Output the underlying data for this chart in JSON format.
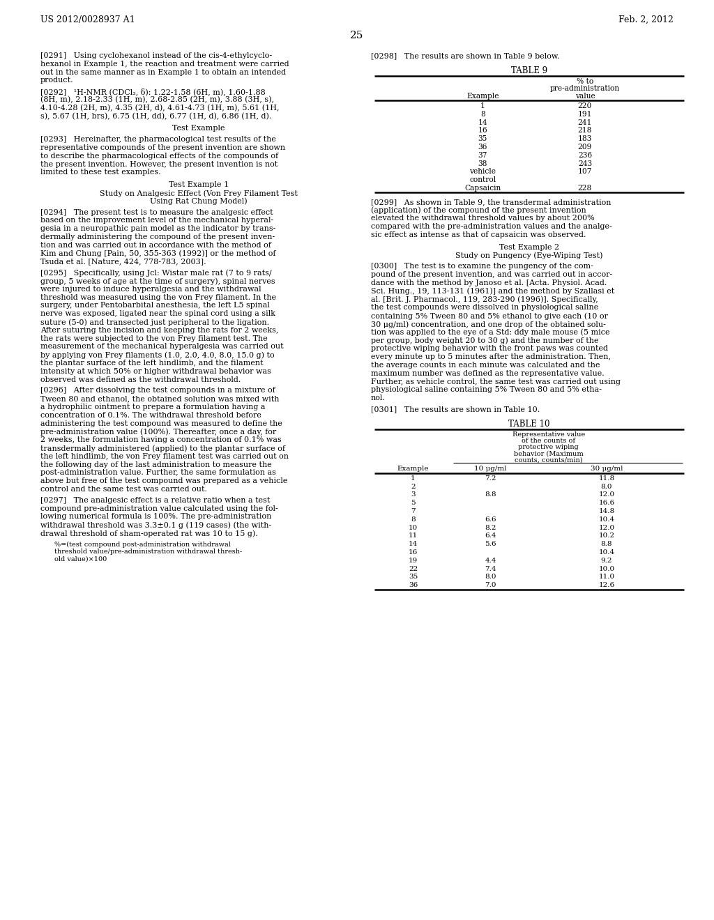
{
  "page_number": "25",
  "header_left": "US 2012/0028937 A1",
  "header_right": "Feb. 2, 2012",
  "background_color": "#ffffff",
  "text_color": "#000000",
  "table9": {
    "rows": [
      [
        "1",
        "220"
      ],
      [
        "8",
        "191"
      ],
      [
        "14",
        "241"
      ],
      [
        "16",
        "218"
      ],
      [
        "35",
        "183"
      ],
      [
        "36",
        "209"
      ],
      [
        "37",
        "236"
      ],
      [
        "38",
        "243"
      ],
      [
        "vehicle",
        "107"
      ],
      [
        "control",
        ""
      ],
      [
        "Capsaicin",
        "228"
      ]
    ]
  },
  "table10": {
    "rows": [
      [
        "1",
        "7.2",
        "11.8"
      ],
      [
        "2",
        "",
        "8.0"
      ],
      [
        "3",
        "8.8",
        "12.0"
      ],
      [
        "5",
        "",
        "16.6"
      ],
      [
        "7",
        "",
        "14.8"
      ],
      [
        "8",
        "6.6",
        "10.4"
      ],
      [
        "10",
        "8.2",
        "12.0"
      ],
      [
        "11",
        "6.4",
        "10.2"
      ],
      [
        "14",
        "5.6",
        "8.8"
      ],
      [
        "16",
        "",
        "10.4"
      ],
      [
        "19",
        "4.4",
        "9.2"
      ],
      [
        "22",
        "7.4",
        "10.0"
      ],
      [
        "35",
        "8.0",
        "11.0"
      ],
      [
        "36",
        "7.0",
        "12.6"
      ]
    ]
  }
}
